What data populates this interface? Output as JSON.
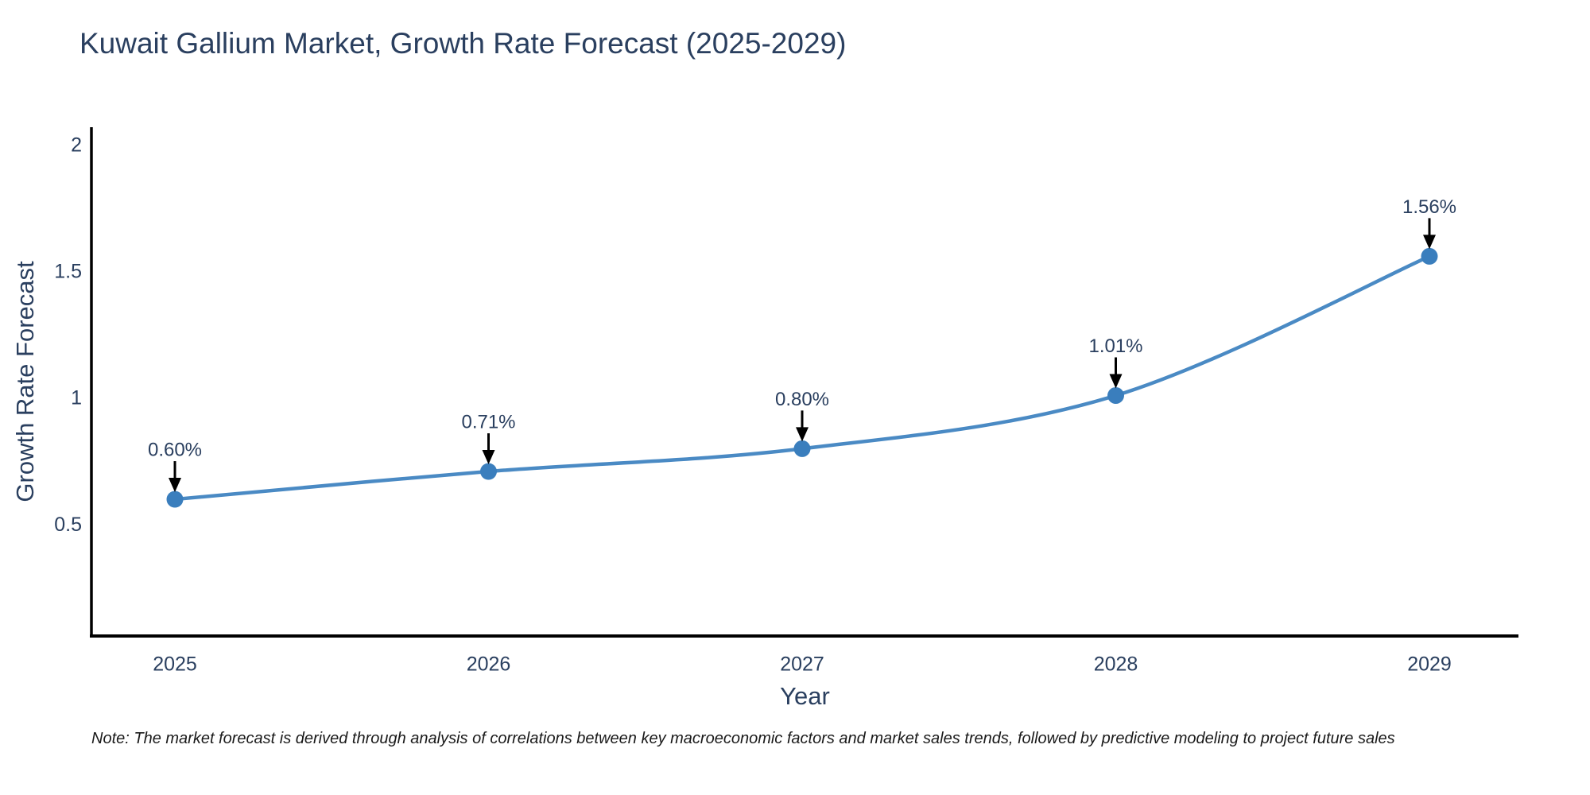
{
  "title": "Kuwait Gallium Market, Growth Rate Forecast (2025-2029)",
  "note": "Note: The market forecast is derived through analysis of correlations between key macroeconomic factors and market sales trends, followed by predictive modeling to project future sales",
  "chart_data": {
    "type": "line",
    "title": "Kuwait Gallium Market, Growth Rate Forecast (2025-2029)",
    "xlabel": "Year",
    "ylabel": "Growth Rate Forecast",
    "categories": [
      "2025",
      "2026",
      "2027",
      "2028",
      "2029"
    ],
    "x": [
      2025,
      2026,
      2027,
      2028,
      2029
    ],
    "values": [
      0.6,
      0.71,
      0.8,
      1.01,
      1.56
    ],
    "point_labels": [
      "0.60%",
      "0.71%",
      "0.80%",
      "1.01%",
      "1.56%"
    ],
    "yticks": [
      0.5,
      1,
      1.5,
      2
    ],
    "ytick_labels": [
      "0.5",
      "1",
      "1.5",
      "2"
    ],
    "ylim": [
      0.06,
      2.07
    ],
    "grid": false,
    "legend_position": "none",
    "line_shape": "spline",
    "markers": true,
    "annotations_arrows": true,
    "colors": {
      "line": "#4a8ac4",
      "marker": "#3a7ebd",
      "axis": "#000000",
      "tick_text": "#2a3f5f",
      "title_text": "#2a3f5f",
      "annotation_text": "#2a3f5f",
      "annotation_arrow": "#000000",
      "note_text": "#1a1a1a",
      "background": "#ffffff"
    }
  }
}
